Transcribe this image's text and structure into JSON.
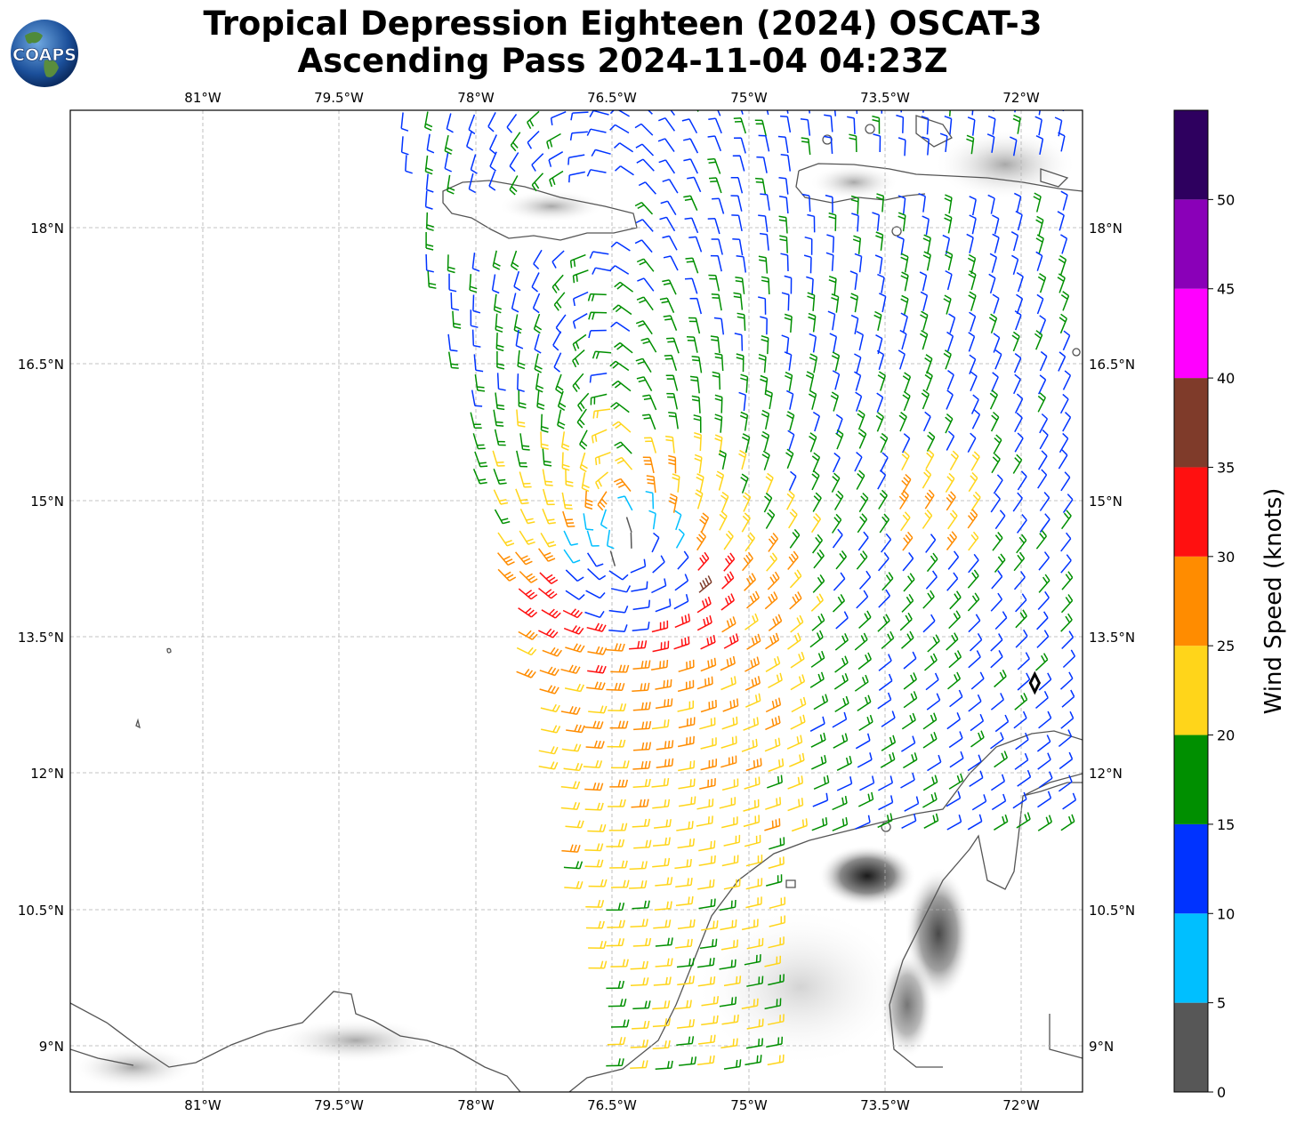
{
  "title_line1": "Tropical Depression Eighteen (2024) OSCAT-3",
  "title_line2": "Ascending Pass 2024-11-04 04:23Z",
  "logo_text": "COAPS",
  "map": {
    "lon_range": [
      -82.0,
      -71.4
    ],
    "lat_range": [
      8.5,
      19.3
    ],
    "lon_ticks": [
      "81°W",
      "79.5°W",
      "78°W",
      "76.5°W",
      "75°W",
      "73.5°W",
      "72°W"
    ],
    "lat_ticks": [
      "18°N",
      "16.5°N",
      "15°N",
      "13.5°N",
      "12°N",
      "10.5°N",
      "9°N"
    ],
    "grid": true,
    "storm_center": {
      "lon": -71.9,
      "lat": 13.0
    },
    "colors": {
      "land_outline": "#555555",
      "gridline": "#b0b0b0",
      "storm_marker": "#000000"
    }
  },
  "colorbar": {
    "label": "Wind Speed (knots)",
    "ticks": [
      "0",
      "5",
      "10",
      "15",
      "20",
      "25",
      "30",
      "35",
      "40",
      "45",
      "50"
    ],
    "bins": [
      {
        "from": 0,
        "to": 5,
        "color": "#575757"
      },
      {
        "from": 5,
        "to": 10,
        "color": "#00bfff"
      },
      {
        "from": 10,
        "to": 15,
        "color": "#0033ff"
      },
      {
        "from": 15,
        "to": 20,
        "color": "#008f00"
      },
      {
        "from": 20,
        "to": 25,
        "color": "#ffd51a"
      },
      {
        "from": 25,
        "to": 30,
        "color": "#ff8c00"
      },
      {
        "from": 30,
        "to": 35,
        "color": "#ff1010"
      },
      {
        "from": 35,
        "to": 40,
        "color": "#7f3b2a"
      },
      {
        "from": 40,
        "to": 45,
        "color": "#ff00ff"
      },
      {
        "from": 45,
        "to": 50,
        "color": "#8a00b8"
      },
      {
        "from": 50,
        "to": 55,
        "color": "#2e005f"
      }
    ]
  }
}
